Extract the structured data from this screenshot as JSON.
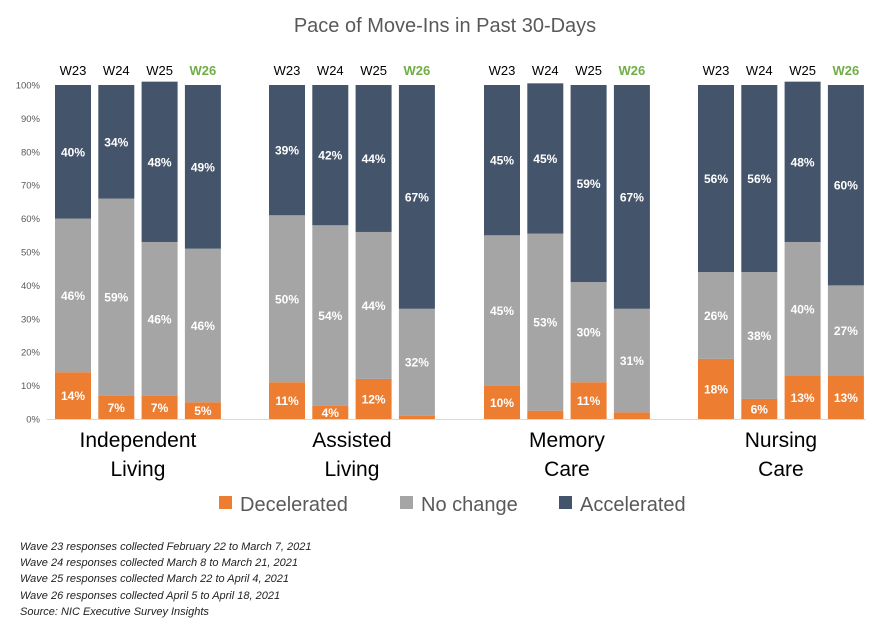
{
  "chart_data": {
    "type": "bar",
    "stacked": true,
    "title": "Pace of Move-Ins in Past 30-Days",
    "ylim": [
      0,
      100
    ],
    "y_ticks": [
      "0%",
      "10%",
      "20%",
      "30%",
      "40%",
      "50%",
      "60%",
      "70%",
      "80%",
      "90%",
      "100%"
    ],
    "waves": [
      "W23",
      "W24",
      "W25",
      "W26"
    ],
    "highlight_wave": "W26",
    "colors": {
      "Decelerated": "#ed7d31",
      "No change": "#a5a5a5",
      "Accelerated": "#44546a",
      "highlight_label": "#70ad47",
      "label_text": "#ffffff"
    },
    "legend": [
      "Decelerated",
      "No change",
      "Accelerated"
    ],
    "legend_position": "bottom",
    "groups": [
      {
        "name_lines": [
          "Independent",
          "Living"
        ],
        "decelerated": [
          14,
          7,
          7,
          5
        ],
        "no_change": [
          46,
          59,
          46,
          46
        ],
        "accelerated": [
          40,
          34,
          48,
          49
        ],
        "decelerated_labels": [
          "14%",
          "7%",
          "7%",
          "5%"
        ],
        "no_change_labels": [
          "46%",
          "59%",
          "46%",
          "46%"
        ],
        "accelerated_labels": [
          "40%",
          "34%",
          "48%",
          "49%"
        ]
      },
      {
        "name_lines": [
          "Assisted",
          "Living"
        ],
        "decelerated": [
          11,
          4,
          12,
          1
        ],
        "no_change": [
          50,
          54,
          44,
          32
        ],
        "accelerated": [
          39,
          42,
          44,
          67
        ],
        "decelerated_labels": [
          "11%",
          "4%",
          "12%",
          ""
        ],
        "no_change_labels": [
          "50%",
          "54%",
          "44%",
          "32%"
        ],
        "accelerated_labels": [
          "39%",
          "42%",
          "44%",
          "67%"
        ]
      },
      {
        "name_lines": [
          "Memory",
          "Care"
        ],
        "decelerated": [
          10,
          2.5,
          11,
          2
        ],
        "no_change": [
          45,
          53,
          30,
          31
        ],
        "accelerated": [
          45,
          45,
          59,
          67
        ],
        "decelerated_labels": [
          "10%",
          "",
          "11%",
          ""
        ],
        "no_change_labels": [
          "45%",
          "53%",
          "30%",
          "31%"
        ],
        "accelerated_labels": [
          "45%",
          "45%",
          "59%",
          "67%"
        ]
      },
      {
        "name_lines": [
          "Nursing",
          "Care"
        ],
        "decelerated": [
          18,
          6,
          13,
          13
        ],
        "no_change": [
          26,
          38,
          40,
          27
        ],
        "accelerated": [
          56,
          56,
          48,
          60
        ],
        "decelerated_labels": [
          "18%",
          "6%",
          "13%",
          "13%"
        ],
        "no_change_labels": [
          "26%",
          "38%",
          "40%",
          "27%"
        ],
        "accelerated_labels": [
          "56%",
          "56%",
          "48%",
          "60%"
        ]
      }
    ]
  },
  "notes": [
    "Wave 23 responses collected  February 22 to March 7, 2021",
    "Wave 24 responses collected  March 8 to March 21, 2021",
    "Wave 25 responses collected  March 22 to April 4, 2021",
    "Wave 26 responses collected  April 5 to April 18, 2021",
    "Source: NIC Executive Survey Insights"
  ]
}
